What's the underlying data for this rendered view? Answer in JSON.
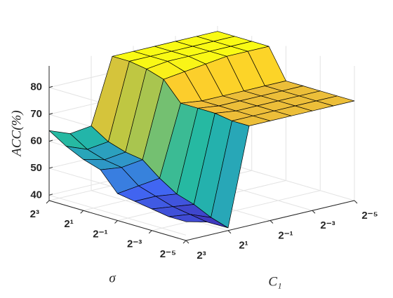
{
  "chart_data": {
    "type": "surface",
    "xlabel": "C₁",
    "ylabel": "σ",
    "zlabel": "ACC(%)",
    "x": [
      0.03125,
      0.0625,
      0.125,
      0.25,
      0.5,
      1,
      2,
      4,
      8
    ],
    "y": [
      0.03125,
      0.0625,
      0.125,
      0.25,
      0.5,
      1,
      2,
      4,
      8
    ],
    "z": [
      [
        75,
        75,
        75,
        75,
        75,
        75,
        39,
        43,
        45
      ],
      [
        75,
        75,
        75,
        75,
        75,
        75,
        41,
        44,
        45
      ],
      [
        75,
        75,
        75,
        75,
        75,
        76,
        44,
        45,
        46
      ],
      [
        75,
        75,
        75,
        75,
        75,
        76,
        46,
        47,
        47
      ],
      [
        75,
        75,
        75,
        75,
        75,
        76,
        50,
        49,
        48
      ],
      [
        86,
        86,
        86,
        85,
        84,
        83,
        55,
        54,
        55
      ],
      [
        86,
        86,
        86,
        86,
        86,
        85,
        56,
        55,
        57
      ],
      [
        86,
        86,
        86,
        86,
        86,
        86,
        58,
        57,
        60
      ],
      [
        86,
        86,
        86,
        86,
        86,
        86,
        62,
        61,
        64
      ]
    ],
    "scale": "log2",
    "xticks": [
      {
        "value": 8,
        "label": "2³"
      },
      {
        "value": 2,
        "label": "2¹"
      },
      {
        "value": 0.5,
        "label": "2⁻¹"
      },
      {
        "value": 0.125,
        "label": "2⁻³"
      },
      {
        "value": 0.03125,
        "label": "2⁻⁵"
      }
    ],
    "yticks": [
      {
        "value": 8,
        "label": "2³"
      },
      {
        "value": 2,
        "label": "2¹"
      },
      {
        "value": 0.5,
        "label": "2⁻¹"
      },
      {
        "value": 0.125,
        "label": "2⁻³"
      },
      {
        "value": 0.03125,
        "label": "2⁻⁵"
      }
    ],
    "zlim": [
      38,
      88
    ],
    "zticks": [
      40,
      50,
      60,
      70,
      80
    ],
    "grid": true
  }
}
